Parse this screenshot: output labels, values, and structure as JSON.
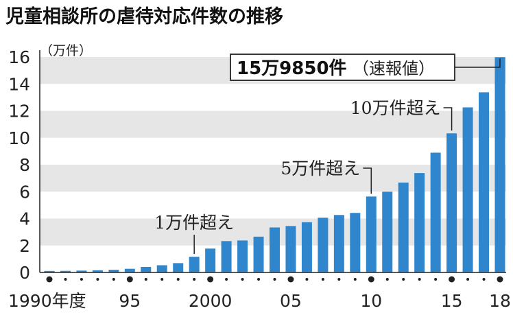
{
  "chart_data": {
    "type": "bar",
    "title": "児童相談所の虐待対応件数の推移",
    "ylabel": "（万件）",
    "ylim": [
      0,
      16
    ],
    "yticks": [
      0,
      2,
      4,
      6,
      8,
      10,
      12,
      14,
      16
    ],
    "grid": "alternating horizontal bands",
    "categories": [
      "1990",
      "1991",
      "1992",
      "1993",
      "1994",
      "1995",
      "1996",
      "1997",
      "1998",
      "1999",
      "2000",
      "2001",
      "2002",
      "2003",
      "2004",
      "2005",
      "2006",
      "2007",
      "2008",
      "2009",
      "2010",
      "2011",
      "2012",
      "2013",
      "2014",
      "2015",
      "2016",
      "2017",
      "2018"
    ],
    "values": [
      0.1101,
      0.1171,
      0.1372,
      0.1611,
      0.1961,
      0.2722,
      0.4102,
      0.5352,
      0.6932,
      1.1631,
      1.7725,
      2.3274,
      2.3738,
      2.6569,
      3.3408,
      3.4472,
      3.7323,
      4.0639,
      4.2664,
      4.4211,
      5.6384,
      5.9919,
      6.6701,
      7.3802,
      8.8931,
      10.3286,
      12.2575,
      13.3778,
      15.985
    ],
    "xtick_labels": [
      {
        "index": 0,
        "label": "1990年度"
      },
      {
        "index": 5,
        "label": "95"
      },
      {
        "index": 10,
        "label": "2000"
      },
      {
        "index": 15,
        "label": "05"
      },
      {
        "index": 20,
        "label": "10"
      },
      {
        "index": 25,
        "label": "15"
      },
      {
        "index": 28,
        "label": "18"
      }
    ],
    "dot_indices": [
      0,
      1,
      2,
      3,
      4,
      5,
      6,
      7,
      8,
      9,
      10,
      11,
      12,
      13,
      14,
      15,
      16,
      17,
      18,
      19,
      20,
      21,
      22,
      23,
      24,
      25,
      26,
      27,
      28
    ],
    "major_dot_indices": [
      0,
      5,
      10,
      15,
      20,
      25,
      28
    ],
    "annotations": [
      {
        "index": 9,
        "text": "1万件超え"
      },
      {
        "index": 20,
        "text": "5万件超え"
      },
      {
        "index": 25,
        "text": "10万件超え"
      },
      {
        "index": 28,
        "text_bold": "15万9850件",
        "text_normal": "（速報値）"
      }
    ],
    "colors": {
      "bar": "#2f86cc",
      "band": "#e6e6e6",
      "text": "#222222",
      "axis": "#222222"
    }
  }
}
